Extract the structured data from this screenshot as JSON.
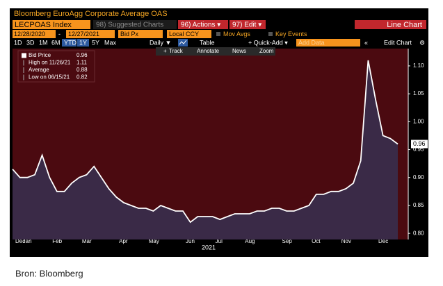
{
  "ui": {
    "header_title": "Bloomberg EuroAgg Corporate Average OAS",
    "ticker": "LECPOAS Index",
    "suggested": "98) Suggested Charts",
    "actions": "96) Actions ▾",
    "edit": "97) Edit ▾",
    "chart_kind": "Line Chart",
    "start_date": "12/28/2020",
    "end_date": "12/27/2021",
    "field": "Bid Px",
    "currency": "Local CCY",
    "mov_avgs": "Mov Avgs",
    "key_events": "Key Events",
    "periods": [
      "1D",
      "3D",
      "1M",
      "6M",
      "YTD",
      "1Y",
      "5Y",
      "Max"
    ],
    "frequency": "Daily ▼",
    "table": "Table",
    "quick_add": "+ Quick-Add ▾",
    "add_data": "Add Data",
    "edit_chart": "Edit Chart",
    "track": "Track",
    "annotate": "Annotate",
    "news": "News",
    "zoom": "Zoom",
    "footer": "Bron: Bloomberg"
  },
  "chart_data": {
    "type": "line",
    "legend": [
      {
        "label": "Bid Price",
        "value": 0.96
      },
      {
        "label": "High on 11/26/21",
        "value": 1.11
      },
      {
        "label": "Average",
        "value": 0.88
      },
      {
        "label": "Low on 06/15/21",
        "value": 0.82
      }
    ],
    "categories": [
      "Dec",
      "Jan",
      null,
      null,
      null,
      "Feb",
      null,
      null,
      null,
      "Mar",
      null,
      null,
      null,
      null,
      "Apr",
      null,
      null,
      null,
      "May",
      null,
      null,
      null,
      null,
      "Jun",
      null,
      null,
      null,
      "Jul",
      null,
      null,
      null,
      "Aug",
      null,
      null,
      null,
      null,
      "Sep",
      null,
      null,
      null,
      "Oct",
      null,
      null,
      null,
      "Nov",
      null,
      null,
      null,
      null,
      "Dec",
      null,
      null,
      null
    ],
    "x_label": "2021",
    "series": [
      {
        "name": "Bid Price",
        "color": "#ffffff",
        "area_color": "#3a2a47",
        "values": [
          0.915,
          0.9,
          0.9,
          0.905,
          0.94,
          0.9,
          0.875,
          0.875,
          0.89,
          0.9,
          0.905,
          0.92,
          0.9,
          0.88,
          0.865,
          0.855,
          0.85,
          0.845,
          0.845,
          0.84,
          0.85,
          0.845,
          0.84,
          0.84,
          0.82,
          0.83,
          0.83,
          0.83,
          0.825,
          0.83,
          0.835,
          0.835,
          0.835,
          0.84,
          0.84,
          0.845,
          0.845,
          0.84,
          0.84,
          0.845,
          0.85,
          0.87,
          0.87,
          0.875,
          0.875,
          0.88,
          0.89,
          0.93,
          1.11,
          1.04,
          0.975,
          0.97,
          0.96
        ]
      }
    ],
    "ylim": [
      0.789,
      1.131
    ],
    "yticks": [
      {
        "value": 0.8,
        "label": "0.80"
      },
      0.85,
      {
        "value": 0.9,
        "label": "0.90"
      },
      0.95,
      {
        "value": 1.0,
        "label": "1.00"
      },
      1.05,
      {
        "value": 1.1,
        "label": "1.10"
      }
    ],
    "background": "#4b0a10"
  }
}
